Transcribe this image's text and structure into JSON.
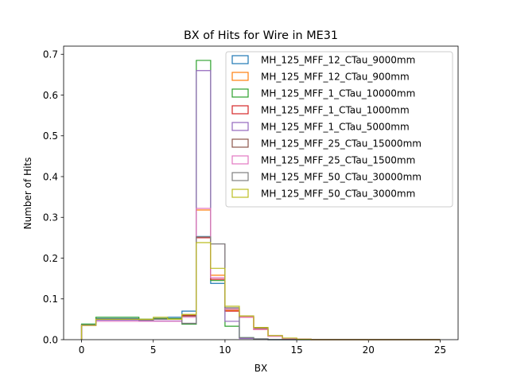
{
  "chart_data": {
    "type": "step-histogram",
    "title": "BX of Hits for Wire in ME31",
    "xlabel": "BX",
    "ylabel": "Number of Hits",
    "xlim": [
      -1.25,
      26.25
    ],
    "ylim": [
      0,
      0.72
    ],
    "xticks": [
      0,
      5,
      10,
      15,
      20,
      25
    ],
    "xtick_labels": [
      "0",
      "5",
      "10",
      "15",
      "20",
      "25"
    ],
    "yticks": [
      0.0,
      0.1,
      0.2,
      0.3,
      0.4,
      0.5,
      0.6,
      0.7
    ],
    "ytick_labels": [
      "0.0",
      "0.1",
      "0.2",
      "0.3",
      "0.4",
      "0.5",
      "0.6",
      "0.7"
    ],
    "bin_edges": [
      0,
      1,
      2,
      3,
      4,
      5,
      6,
      7,
      8,
      9,
      10,
      11,
      12,
      13,
      14,
      15,
      16,
      17,
      18,
      19,
      20,
      21,
      22,
      23,
      24,
      25
    ],
    "legend_position": "upper right",
    "grid": false,
    "series": [
      {
        "name": "MH_125_MFF_12_CTau_9000mm",
        "color": "#1f77b4",
        "values": [
          0.038,
          0.052,
          0.052,
          0.052,
          0.05,
          0.052,
          0.055,
          0.07,
          0.253,
          0.138,
          0.075,
          0.005,
          0.002,
          0,
          0,
          0,
          0,
          0,
          0,
          0,
          0,
          0,
          0,
          0,
          0
        ]
      },
      {
        "name": "MH_125_MFF_12_CTau_900mm",
        "color": "#ff7f0e",
        "values": [
          0.035,
          0.048,
          0.05,
          0.05,
          0.048,
          0.05,
          0.05,
          0.058,
          0.318,
          0.158,
          0.072,
          0.055,
          0.025,
          0.008,
          0.003,
          0.001,
          0,
          0,
          0,
          0,
          0,
          0,
          0,
          0,
          0
        ]
      },
      {
        "name": "MH_125_MFF_1_CTau_10000mm",
        "color": "#2ca02c",
        "values": [
          0.038,
          0.055,
          0.055,
          0.055,
          0.05,
          0.052,
          0.052,
          0.038,
          0.685,
          0.145,
          0.033,
          0.005,
          0.001,
          0,
          0,
          0,
          0,
          0,
          0,
          0,
          0,
          0,
          0,
          0,
          0
        ]
      },
      {
        "name": "MH_125_MFF_1_CTau_1000mm",
        "color": "#d62728",
        "values": [
          0.036,
          0.05,
          0.05,
          0.05,
          0.048,
          0.05,
          0.05,
          0.06,
          0.25,
          0.148,
          0.07,
          0.055,
          0.025,
          0.008,
          0.003,
          0.001,
          0,
          0,
          0,
          0,
          0,
          0,
          0,
          0,
          0
        ]
      },
      {
        "name": "MH_125_MFF_1_CTau_5000mm",
        "color": "#9467bd",
        "values": [
          0.036,
          0.048,
          0.048,
          0.048,
          0.046,
          0.046,
          0.046,
          0.04,
          0.66,
          0.235,
          0.045,
          0.003,
          0.001,
          0,
          0,
          0,
          0,
          0,
          0,
          0,
          0,
          0,
          0,
          0,
          0
        ]
      },
      {
        "name": "MH_125_MFF_25_CTau_15000mm",
        "color": "#8c564b",
        "values": [
          0.035,
          0.05,
          0.05,
          0.05,
          0.048,
          0.05,
          0.05,
          0.058,
          0.252,
          0.235,
          0.078,
          0.058,
          0.028,
          0.01,
          0.003,
          0.001,
          0,
          0,
          0,
          0,
          0,
          0,
          0,
          0,
          0
        ]
      },
      {
        "name": "MH_125_MFF_25_CTau_1500mm",
        "color": "#e377c2",
        "values": [
          0.035,
          0.045,
          0.045,
          0.045,
          0.045,
          0.045,
          0.045,
          0.055,
          0.322,
          0.152,
          0.075,
          0.055,
          0.025,
          0.008,
          0.003,
          0.001,
          0,
          0,
          0,
          0,
          0,
          0,
          0,
          0,
          0
        ]
      },
      {
        "name": "MH_125_MFF_50_CTau_30000mm",
        "color": "#7f7f7f",
        "values": [
          0.035,
          0.05,
          0.05,
          0.05,
          0.048,
          0.05,
          0.05,
          0.04,
          0.252,
          0.235,
          0.078,
          0.005,
          0.002,
          0,
          0,
          0,
          0,
          0,
          0,
          0,
          0,
          0,
          0,
          0,
          0
        ]
      },
      {
        "name": "MH_125_MFF_50_CTau_3000mm",
        "color": "#bcbd22",
        "values": [
          0.035,
          0.05,
          0.05,
          0.05,
          0.05,
          0.055,
          0.05,
          0.062,
          0.238,
          0.175,
          0.082,
          0.058,
          0.03,
          0.01,
          0.004,
          0.001,
          0,
          0,
          0,
          0,
          0,
          0,
          0,
          0,
          0
        ]
      }
    ]
  }
}
